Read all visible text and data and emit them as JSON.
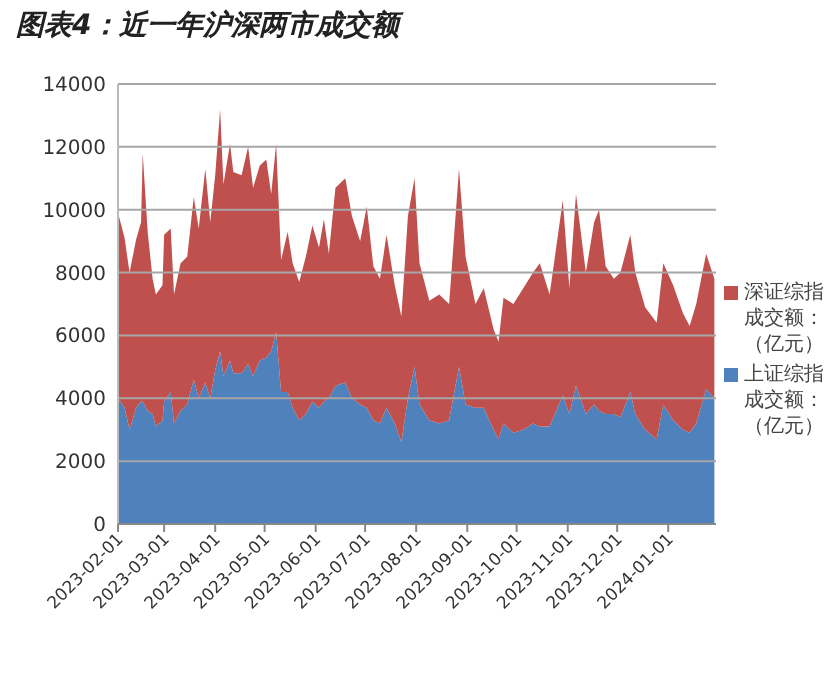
{
  "chart_data": {
    "type": "area",
    "title": "图表4：近一年沪深两市成交额",
    "stacked": true,
    "x": [
      "2023-02-01",
      "2023-02-05",
      "2023-02-08",
      "2023-02-12",
      "2023-02-15",
      "2023-02-16",
      "2023-02-19",
      "2023-02-22",
      "2023-02-24",
      "2023-02-28",
      "2023-03-01",
      "2023-03-05",
      "2023-03-07",
      "2023-03-11",
      "2023-03-15",
      "2023-03-19",
      "2023-03-22",
      "2023-03-26",
      "2023-03-29",
      "2023-04-01",
      "2023-04-04",
      "2023-04-06",
      "2023-04-10",
      "2023-04-12",
      "2023-04-17",
      "2023-04-21",
      "2023-04-24",
      "2023-04-28",
      "2023-05-02",
      "2023-05-05",
      "2023-05-08",
      "2023-05-11",
      "2023-05-15",
      "2023-05-18",
      "2023-05-22",
      "2023-05-26",
      "2023-05-30",
      "2023-06-03",
      "2023-06-06",
      "2023-06-09",
      "2023-06-13",
      "2023-06-19",
      "2023-06-23",
      "2023-06-28",
      "2023-07-02",
      "2023-07-06",
      "2023-07-10",
      "2023-07-14",
      "2023-07-19",
      "2023-07-23",
      "2023-07-27",
      "2023-07-31",
      "2023-08-03",
      "2023-08-09",
      "2023-08-15",
      "2023-08-21",
      "2023-08-27",
      "2023-08-31",
      "2023-09-06",
      "2023-09-11",
      "2023-09-17",
      "2023-09-20",
      "2023-09-23",
      "2023-09-29",
      "2023-10-05",
      "2023-10-11",
      "2023-10-15",
      "2023-10-21",
      "2023-10-29",
      "2023-11-02",
      "2023-11-06",
      "2023-11-12",
      "2023-11-17",
      "2023-11-20",
      "2023-11-24",
      "2023-11-29",
      "2023-12-03",
      "2023-12-09",
      "2023-12-12",
      "2023-12-18",
      "2023-12-25",
      "2023-12-29",
      "2024-01-04",
      "2024-01-10",
      "2024-01-14",
      "2024-01-18",
      "2024-01-24",
      "2024-01-29"
    ],
    "series": [
      {
        "name": "上证综指成交额：（亿元）",
        "color": "#4f81bd",
        "values": [
          4000,
          3700,
          3000,
          3700,
          3900,
          3900,
          3600,
          3500,
          3100,
          3300,
          3900,
          4200,
          3200,
          3600,
          3800,
          4600,
          4000,
          4500,
          4000,
          4900,
          5500,
          4700,
          5200,
          4800,
          4800,
          5100,
          4700,
          5200,
          5300,
          5500,
          6100,
          4200,
          4200,
          3700,
          3300,
          3500,
          3900,
          3700,
          3900,
          4000,
          4400,
          4500,
          4000,
          3800,
          3700,
          3300,
          3200,
          3700,
          3200,
          2600,
          4000,
          5000,
          3800,
          3300,
          3200,
          3300,
          5000,
          3800,
          3700,
          3700,
          3000,
          2700,
          3200,
          2900,
          3000,
          3200,
          3100,
          3100,
          4100,
          3500,
          4400,
          3500,
          3800,
          3600,
          3500,
          3500,
          3400,
          4200,
          3500,
          3000,
          2700,
          3800,
          3300,
          3000,
          2900,
          3200,
          4300,
          4000
        ]
      },
      {
        "name": "深证综指成交额：（亿元）",
        "color": "#c0504d",
        "values": [
          5900,
          5400,
          5000,
          5350,
          5700,
          7900,
          5700,
          4300,
          4200,
          4300,
          5300,
          5200,
          4100,
          4700,
          4700,
          5800,
          5400,
          6800,
          5600,
          6200,
          7700,
          6100,
          6900,
          6400,
          6300,
          6900,
          6000,
          6200,
          6300,
          5000,
          6000,
          4200,
          5100,
          4600,
          4400,
          5000,
          5600,
          5100,
          5800,
          4600,
          6300,
          6500,
          5800,
          5200,
          6400,
          4900,
          4600,
          5500,
          4400,
          4000,
          5800,
          6000,
          4500,
          3800,
          4100,
          3700,
          6300,
          4700,
          3300,
          3800,
          3200,
          3100,
          4000,
          4100,
          4500,
          4800,
          5200,
          4200,
          6200,
          4000,
          6100,
          4500,
          5800,
          6400,
          4700,
          4300,
          4600,
          5000,
          4500,
          3900,
          3700,
          4500,
          4300,
          3700,
          3400,
          3800,
          4300,
          3800
        ]
      }
    ],
    "xlim": [
      "2023-02-01",
      "2024-01-30"
    ],
    "xticks": [
      "2023-02-01",
      "2023-03-01",
      "2023-04-01",
      "2023-05-01",
      "2023-06-01",
      "2023-07-01",
      "2023-08-01",
      "2023-09-01",
      "2023-10-01",
      "2023-11-01",
      "2023-12-01",
      "2024-01-01"
    ],
    "ylim": [
      0,
      14000
    ],
    "yticks": [
      0,
      2000,
      4000,
      6000,
      8000,
      10000,
      12000,
      14000
    ],
    "grid": "y",
    "legend": "right"
  }
}
